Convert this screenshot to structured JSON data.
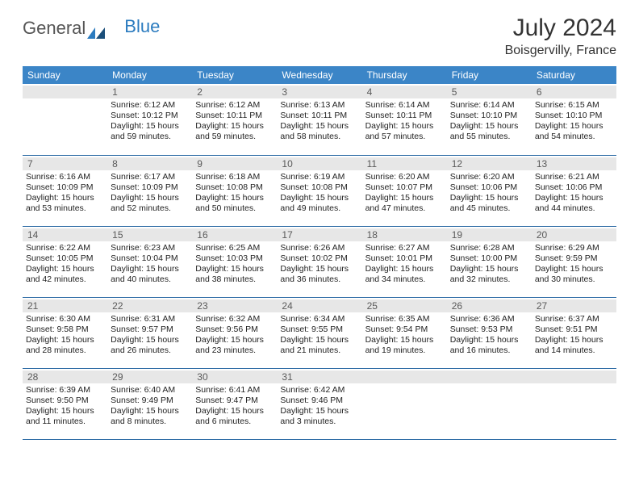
{
  "brand": {
    "general": "General",
    "blue": "Blue"
  },
  "title": {
    "month": "July 2024",
    "location": "Boisgervilly, France"
  },
  "day_headers": [
    "Sunday",
    "Monday",
    "Tuesday",
    "Wednesday",
    "Thursday",
    "Friday",
    "Saturday"
  ],
  "colors": {
    "header_bg": "#3b85c7",
    "header_text": "#ffffff",
    "daynum_bg": "#e7e7e7",
    "daynum_text": "#5a5a5a",
    "row_border": "#2e6ca5",
    "logo_blue": "#2b7bbf",
    "page_bg": "#ffffff"
  },
  "weeks": [
    [
      {
        "day": "",
        "sunrise": "",
        "sunset": "",
        "daylight": ""
      },
      {
        "day": "1",
        "sunrise": "Sunrise: 6:12 AM",
        "sunset": "Sunset: 10:12 PM",
        "daylight": "Daylight: 15 hours and 59 minutes."
      },
      {
        "day": "2",
        "sunrise": "Sunrise: 6:12 AM",
        "sunset": "Sunset: 10:11 PM",
        "daylight": "Daylight: 15 hours and 59 minutes."
      },
      {
        "day": "3",
        "sunrise": "Sunrise: 6:13 AM",
        "sunset": "Sunset: 10:11 PM",
        "daylight": "Daylight: 15 hours and 58 minutes."
      },
      {
        "day": "4",
        "sunrise": "Sunrise: 6:14 AM",
        "sunset": "Sunset: 10:11 PM",
        "daylight": "Daylight: 15 hours and 57 minutes."
      },
      {
        "day": "5",
        "sunrise": "Sunrise: 6:14 AM",
        "sunset": "Sunset: 10:10 PM",
        "daylight": "Daylight: 15 hours and 55 minutes."
      },
      {
        "day": "6",
        "sunrise": "Sunrise: 6:15 AM",
        "sunset": "Sunset: 10:10 PM",
        "daylight": "Daylight: 15 hours and 54 minutes."
      }
    ],
    [
      {
        "day": "7",
        "sunrise": "Sunrise: 6:16 AM",
        "sunset": "Sunset: 10:09 PM",
        "daylight": "Daylight: 15 hours and 53 minutes."
      },
      {
        "day": "8",
        "sunrise": "Sunrise: 6:17 AM",
        "sunset": "Sunset: 10:09 PM",
        "daylight": "Daylight: 15 hours and 52 minutes."
      },
      {
        "day": "9",
        "sunrise": "Sunrise: 6:18 AM",
        "sunset": "Sunset: 10:08 PM",
        "daylight": "Daylight: 15 hours and 50 minutes."
      },
      {
        "day": "10",
        "sunrise": "Sunrise: 6:19 AM",
        "sunset": "Sunset: 10:08 PM",
        "daylight": "Daylight: 15 hours and 49 minutes."
      },
      {
        "day": "11",
        "sunrise": "Sunrise: 6:20 AM",
        "sunset": "Sunset: 10:07 PM",
        "daylight": "Daylight: 15 hours and 47 minutes."
      },
      {
        "day": "12",
        "sunrise": "Sunrise: 6:20 AM",
        "sunset": "Sunset: 10:06 PM",
        "daylight": "Daylight: 15 hours and 45 minutes."
      },
      {
        "day": "13",
        "sunrise": "Sunrise: 6:21 AM",
        "sunset": "Sunset: 10:06 PM",
        "daylight": "Daylight: 15 hours and 44 minutes."
      }
    ],
    [
      {
        "day": "14",
        "sunrise": "Sunrise: 6:22 AM",
        "sunset": "Sunset: 10:05 PM",
        "daylight": "Daylight: 15 hours and 42 minutes."
      },
      {
        "day": "15",
        "sunrise": "Sunrise: 6:23 AM",
        "sunset": "Sunset: 10:04 PM",
        "daylight": "Daylight: 15 hours and 40 minutes."
      },
      {
        "day": "16",
        "sunrise": "Sunrise: 6:25 AM",
        "sunset": "Sunset: 10:03 PM",
        "daylight": "Daylight: 15 hours and 38 minutes."
      },
      {
        "day": "17",
        "sunrise": "Sunrise: 6:26 AM",
        "sunset": "Sunset: 10:02 PM",
        "daylight": "Daylight: 15 hours and 36 minutes."
      },
      {
        "day": "18",
        "sunrise": "Sunrise: 6:27 AM",
        "sunset": "Sunset: 10:01 PM",
        "daylight": "Daylight: 15 hours and 34 minutes."
      },
      {
        "day": "19",
        "sunrise": "Sunrise: 6:28 AM",
        "sunset": "Sunset: 10:00 PM",
        "daylight": "Daylight: 15 hours and 32 minutes."
      },
      {
        "day": "20",
        "sunrise": "Sunrise: 6:29 AM",
        "sunset": "Sunset: 9:59 PM",
        "daylight": "Daylight: 15 hours and 30 minutes."
      }
    ],
    [
      {
        "day": "21",
        "sunrise": "Sunrise: 6:30 AM",
        "sunset": "Sunset: 9:58 PM",
        "daylight": "Daylight: 15 hours and 28 minutes."
      },
      {
        "day": "22",
        "sunrise": "Sunrise: 6:31 AM",
        "sunset": "Sunset: 9:57 PM",
        "daylight": "Daylight: 15 hours and 26 minutes."
      },
      {
        "day": "23",
        "sunrise": "Sunrise: 6:32 AM",
        "sunset": "Sunset: 9:56 PM",
        "daylight": "Daylight: 15 hours and 23 minutes."
      },
      {
        "day": "24",
        "sunrise": "Sunrise: 6:34 AM",
        "sunset": "Sunset: 9:55 PM",
        "daylight": "Daylight: 15 hours and 21 minutes."
      },
      {
        "day": "25",
        "sunrise": "Sunrise: 6:35 AM",
        "sunset": "Sunset: 9:54 PM",
        "daylight": "Daylight: 15 hours and 19 minutes."
      },
      {
        "day": "26",
        "sunrise": "Sunrise: 6:36 AM",
        "sunset": "Sunset: 9:53 PM",
        "daylight": "Daylight: 15 hours and 16 minutes."
      },
      {
        "day": "27",
        "sunrise": "Sunrise: 6:37 AM",
        "sunset": "Sunset: 9:51 PM",
        "daylight": "Daylight: 15 hours and 14 minutes."
      }
    ],
    [
      {
        "day": "28",
        "sunrise": "Sunrise: 6:39 AM",
        "sunset": "Sunset: 9:50 PM",
        "daylight": "Daylight: 15 hours and 11 minutes."
      },
      {
        "day": "29",
        "sunrise": "Sunrise: 6:40 AM",
        "sunset": "Sunset: 9:49 PM",
        "daylight": "Daylight: 15 hours and 8 minutes."
      },
      {
        "day": "30",
        "sunrise": "Sunrise: 6:41 AM",
        "sunset": "Sunset: 9:47 PM",
        "daylight": "Daylight: 15 hours and 6 minutes."
      },
      {
        "day": "31",
        "sunrise": "Sunrise: 6:42 AM",
        "sunset": "Sunset: 9:46 PM",
        "daylight": "Daylight: 15 hours and 3 minutes."
      },
      {
        "day": "",
        "sunrise": "",
        "sunset": "",
        "daylight": ""
      },
      {
        "day": "",
        "sunrise": "",
        "sunset": "",
        "daylight": ""
      },
      {
        "day": "",
        "sunrise": "",
        "sunset": "",
        "daylight": ""
      }
    ]
  ]
}
